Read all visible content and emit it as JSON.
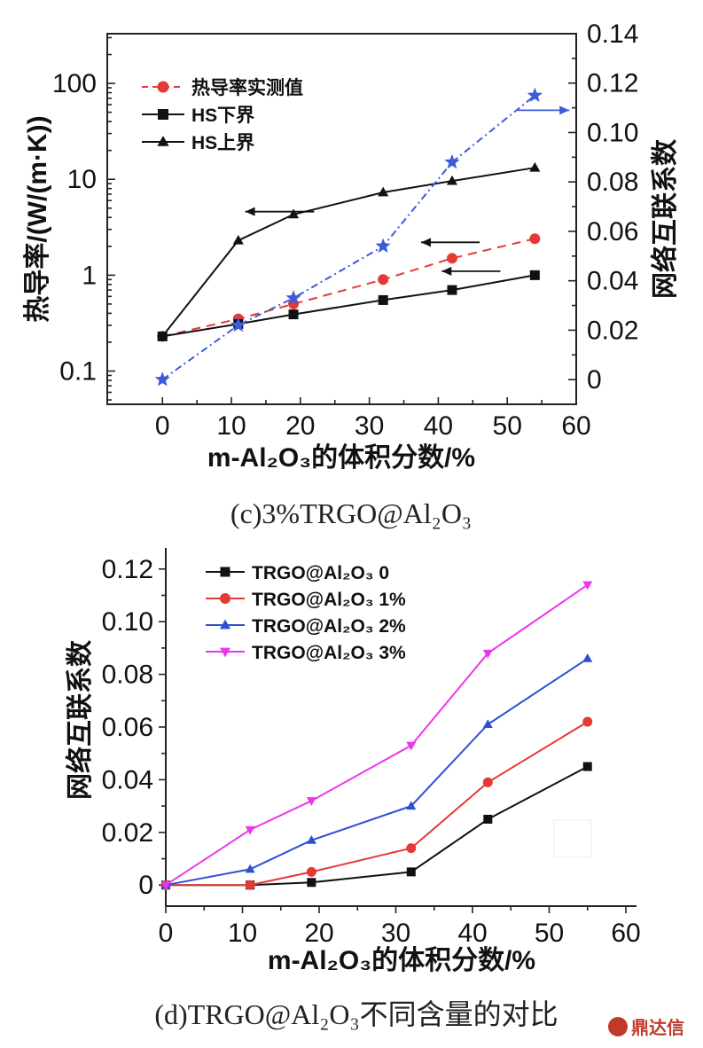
{
  "chart_data": [
    {
      "id": "c",
      "type": "line",
      "caption": "(c)3%TRGO@Al₂O₃",
      "xlabel": "m-Al₂O₃的体积分数/%",
      "ylabel_left": "热导率/(W/(m·K))",
      "ylabel_right": "网络互联系数",
      "xlim": [
        -8,
        60
      ],
      "xticks": [
        0,
        10,
        20,
        30,
        40,
        50,
        60
      ],
      "ylim_left_log": [
        0.045,
        330
      ],
      "yticks_left": [
        {
          "v": 0.1,
          "label": "0.1"
        },
        {
          "v": 1,
          "label": "1"
        },
        {
          "v": 10,
          "label": "10"
        },
        {
          "v": 100,
          "label": "100"
        }
      ],
      "ylim_right": [
        -0.01,
        0.14
      ],
      "yticks_right": [
        {
          "v": 0,
          "label": "0"
        },
        {
          "v": 0.02,
          "label": "0.02"
        },
        {
          "v": 0.04,
          "label": "0.04"
        },
        {
          "v": 0.06,
          "label": "0.06"
        },
        {
          "v": 0.08,
          "label": "0.08"
        },
        {
          "v": 0.1,
          "label": "0.10"
        },
        {
          "v": 0.12,
          "label": "0.12"
        },
        {
          "v": 0.14,
          "label": "0.14"
        }
      ],
      "legend": [
        {
          "label": "热导率实测值",
          "color": "#e53935",
          "marker": "circle",
          "dash": true
        },
        {
          "label": "HS下界",
          "color": "#111111",
          "marker": "square",
          "dash": false
        },
        {
          "label": "HS上界",
          "color": "#111111",
          "marker": "triangle",
          "dash": false
        }
      ],
      "series": [
        {
          "name": "热导率实测值",
          "axis": "left",
          "color": "#e53935",
          "marker": "circle",
          "dash": "10,7",
          "x": [
            0,
            11,
            19,
            32,
            42,
            54
          ],
          "values": [
            0.23,
            0.35,
            0.5,
            0.9,
            1.5,
            2.4
          ]
        },
        {
          "name": "HS下界",
          "axis": "left",
          "color": "#111111",
          "marker": "square",
          "dash": "",
          "x": [
            0,
            11,
            19,
            32,
            42,
            54
          ],
          "values": [
            0.23,
            0.31,
            0.39,
            0.55,
            0.7,
            1.0
          ]
        },
        {
          "name": "HS上界",
          "axis": "left",
          "color": "#111111",
          "marker": "triangle",
          "dash": "",
          "x": [
            0,
            11,
            19,
            32,
            42,
            54
          ],
          "values": [
            0.23,
            2.3,
            4.3,
            7.3,
            9.6,
            13.2
          ]
        },
        {
          "name": "网络互联系数",
          "axis": "right",
          "color": "#3d5bd9",
          "marker": "star",
          "dash": "8,4,2,4",
          "x": [
            0,
            11,
            19,
            32,
            42,
            54
          ],
          "values": [
            0.0,
            0.022,
            0.033,
            0.054,
            0.088,
            0.115
          ]
        }
      ],
      "arrows": [
        {
          "from_x": 22,
          "to_x": 12,
          "y_left": 4.6,
          "direction": "left"
        },
        {
          "from_x": 46,
          "to_x": 37.5,
          "y_left": 2.2,
          "direction": "left"
        },
        {
          "from_x": 49,
          "to_x": 40.5,
          "y_left": 1.1,
          "direction": "left"
        },
        {
          "from_x": 51.5,
          "to_x": 59,
          "y_right": 0.109,
          "direction": "right"
        }
      ]
    },
    {
      "id": "d",
      "type": "line",
      "caption": "(d)TRGO@Al₂O₃不同含量的对比",
      "xlabel": "m-Al₂O₃的体积分数/%",
      "ylabel": "网络互联系数",
      "xlim": [
        0,
        60
      ],
      "xticks": [
        0,
        10,
        20,
        30,
        40,
        50,
        60
      ],
      "ylim": [
        -0.008,
        0.128
      ],
      "yticks": [
        {
          "v": 0,
          "label": "0"
        },
        {
          "v": 0.02,
          "label": "0.02"
        },
        {
          "v": 0.04,
          "label": "0.04"
        },
        {
          "v": 0.06,
          "label": "0.06"
        },
        {
          "v": 0.08,
          "label": "0.08"
        },
        {
          "v": 0.1,
          "label": "0.10"
        },
        {
          "v": 0.12,
          "label": "0.12"
        }
      ],
      "series": [
        {
          "name": "TRGO@Al₂O₃ 0",
          "color": "#111111",
          "marker": "square",
          "x": [
            0,
            11,
            19,
            32,
            42,
            55
          ],
          "values": [
            0.0,
            0.0,
            0.001,
            0.005,
            0.025,
            0.045
          ]
        },
        {
          "name": "TRGO@Al₂O₃ 1%",
          "color": "#e53935",
          "marker": "circle",
          "x": [
            0,
            11,
            19,
            32,
            42,
            55
          ],
          "values": [
            0.0,
            0.0,
            0.005,
            0.014,
            0.039,
            0.062
          ]
        },
        {
          "name": "TRGO@Al₂O₃ 2%",
          "color": "#2d4fd6",
          "marker": "triangle",
          "x": [
            0,
            11,
            19,
            32,
            42,
            55
          ],
          "values": [
            0.0,
            0.006,
            0.017,
            0.03,
            0.061,
            0.086
          ]
        },
        {
          "name": "TRGO@Al₂O₃ 3%",
          "color": "#ee35ee",
          "marker": "tri-down",
          "x": [
            0,
            11,
            19,
            32,
            42,
            55
          ],
          "values": [
            0.0,
            0.021,
            0.032,
            0.053,
            0.088,
            0.114
          ]
        }
      ]
    }
  ],
  "watermark": "鼎达信"
}
